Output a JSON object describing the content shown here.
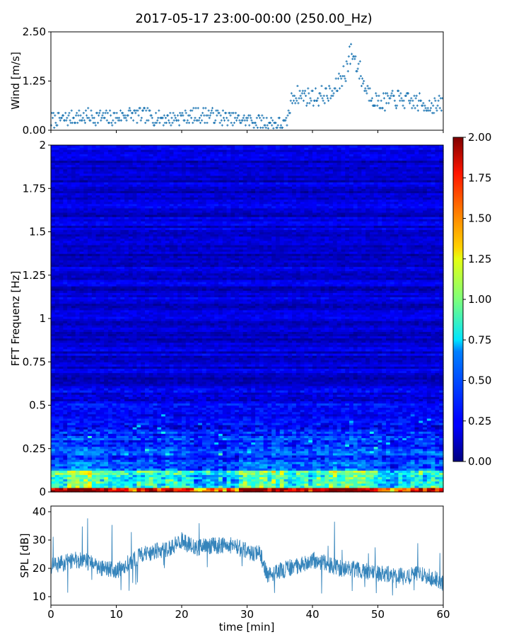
{
  "title": "2017-05-17 23:00-00:00 (250.00_Hz)",
  "chart_data": [
    {
      "id": "wind",
      "type": "scatter",
      "ylabel": "Wind [m/s]",
      "xlim": [
        0,
        60
      ],
      "ylim": [
        0,
        2.5
      ],
      "yticks": [
        "0.00",
        "1.25",
        "2.50"
      ],
      "marker": "+",
      "color": "#1f77b4",
      "series": [
        {
          "x": [
            0,
            3,
            6,
            9,
            12,
            15,
            18,
            21,
            24,
            27,
            30,
            33,
            36,
            37,
            40,
            43,
            45,
            46,
            47,
            48,
            50,
            53,
            56,
            59,
            60
          ],
          "y": [
            0.25,
            0.3,
            0.35,
            0.3,
            0.4,
            0.35,
            0.3,
            0.35,
            0.4,
            0.3,
            0.25,
            0.2,
            0.15,
            0.9,
            0.85,
            0.9,
            1.5,
            2.0,
            1.6,
            1.1,
            0.7,
            0.8,
            0.7,
            0.6,
            0.7
          ]
        }
      ]
    },
    {
      "id": "spectrogram",
      "type": "heatmap",
      "ylabel": "FFT Frequenz [Hz]",
      "xlim": [
        0,
        60
      ],
      "ylim": [
        0,
        2
      ],
      "yticks": [
        "0",
        "0.25",
        "0.5",
        "0.75",
        "1",
        "1.25",
        "1.5",
        "1.75",
        "2"
      ],
      "colorbar": {
        "min": 0.0,
        "max": 2.0,
        "ticks": [
          "0.00",
          "0.25",
          "0.50",
          "0.75",
          "1.00",
          "1.25",
          "1.50",
          "1.75",
          "2.00"
        ],
        "colormap": "jet"
      },
      "description_values": {
        "low_freq_band_hz": [
          0,
          0.1
        ],
        "low_freq_level": 1.6,
        "band_0_1_to_0_4_level": 0.5,
        "above_0_5_level": 0.18
      }
    },
    {
      "id": "spl",
      "type": "line",
      "ylabel": "SPL [dB]",
      "xlabel": "time [min]",
      "xlim": [
        0,
        60
      ],
      "ylim": [
        7,
        42
      ],
      "yticks": [
        "10",
        "20",
        "30",
        "40"
      ],
      "xticks": [
        "0",
        "10",
        "20",
        "30",
        "40",
        "50",
        "60"
      ],
      "color": "#1f77b4",
      "series": [
        {
          "x": [
            0,
            2,
            4,
            6,
            8,
            10,
            12,
            14,
            16,
            18,
            20,
            22,
            24,
            26,
            28,
            30,
            32,
            33,
            34,
            36,
            38,
            40,
            42,
            44,
            46,
            48,
            50,
            52,
            54,
            56,
            58,
            60
          ],
          "y": [
            21,
            22,
            23,
            22,
            20,
            19,
            22,
            25,
            26,
            27,
            30,
            27,
            28,
            28,
            28,
            26,
            25,
            18,
            18,
            20,
            21,
            23,
            22,
            20,
            20,
            19,
            18,
            18,
            17,
            18,
            17,
            15
          ]
        }
      ]
    }
  ]
}
